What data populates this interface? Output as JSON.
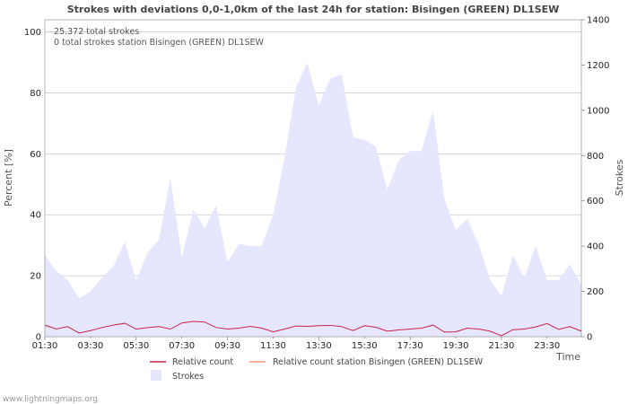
{
  "chart_data": {
    "type": "area",
    "title": "Strokes with deviations 0,0-1,0km of the last 24h for station: Bisingen (GREEN) DL1SEW",
    "ylabel": "Percent   [%]",
    "y2label": "Strokes",
    "xlabel": "Time",
    "ylim": [
      0,
      104
    ],
    "y2lim": [
      0,
      1400
    ],
    "yticks": [
      0,
      20,
      40,
      60,
      80,
      100
    ],
    "y2ticks": [
      0,
      200,
      400,
      600,
      800,
      1000,
      1200,
      1400
    ],
    "xticks": [
      "01:30",
      "03:30",
      "05:30",
      "07:30",
      "09:30",
      "11:30",
      "13:30",
      "15:30",
      "17:30",
      "19:30",
      "21:30",
      "23:30"
    ],
    "annotations": [
      "25.372 total strokes",
      "0 total strokes station Bisingen (GREEN) DL1SEW"
    ],
    "series": [
      {
        "name": "Strokes",
        "axis": "right",
        "color": "#e6e6ff",
        "values": [
          360,
          290,
          250,
          170,
          200,
          260,
          310,
          420,
          250,
          370,
          430,
          700,
          350,
          560,
          480,
          580,
          330,
          410,
          400,
          400,
          540,
          790,
          1100,
          1210,
          1020,
          1140,
          1160,
          880,
          870,
          840,
          650,
          780,
          820,
          820,
          1000,
          610,
          470,
          520,
          410,
          250,
          180,
          360,
          260,
          400,
          250,
          250,
          320,
          230
        ]
      },
      {
        "name": "Relative count",
        "axis": "left",
        "color": "#cc2244",
        "values": [
          3.8,
          2.5,
          3.3,
          1.2,
          2.0,
          3.0,
          3.8,
          4.4,
          2.5,
          3.0,
          3.3,
          2.5,
          4.5,
          5.0,
          4.8,
          3.0,
          2.5,
          2.8,
          3.4,
          2.8,
          1.6,
          2.5,
          3.5,
          3.4,
          3.6,
          3.7,
          3.3,
          2.0,
          3.6,
          3.1,
          1.8,
          2.2,
          2.5,
          2.8,
          3.8,
          1.5,
          1.6,
          2.8,
          2.5,
          1.8,
          0.3,
          2.3,
          2.5,
          3.2,
          4.3,
          2.4,
          3.3,
          1.8
        ]
      },
      {
        "name": "Relative count station Bisingen (GREEN) DL1SEW",
        "axis": "left",
        "color": "#ff9977",
        "values": []
      }
    ]
  },
  "footer": "www.lightningmaps.org"
}
